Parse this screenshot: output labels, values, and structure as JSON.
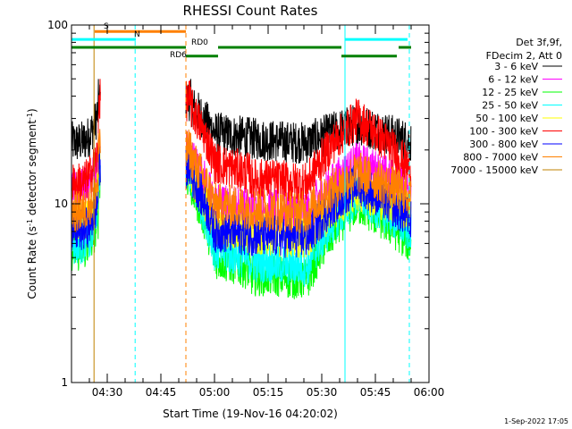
{
  "chart_data": {
    "type": "line",
    "title": "RHESSI Count Rates",
    "xlabel": "Start Time (19-Nov-16 04:20:02)",
    "ylabel": "Count Rate (s",
    "ylabel_sup": "-1",
    "ylabel_tail": " detector segment",
    "ylabel_end": ")",
    "y_scale": "log",
    "ylim": [
      1,
      100
    ],
    "xlim_minutes_from_0420": [
      0,
      100
    ],
    "yticks": [
      {
        "value": 1,
        "label": "1"
      },
      {
        "value": 10,
        "label": "10"
      },
      {
        "value": 100,
        "label": "100"
      }
    ],
    "xticks": [
      {
        "min": 10,
        "label": "04:30"
      },
      {
        "min": 25,
        "label": "04:45"
      },
      {
        "min": 40,
        "label": "05:00"
      },
      {
        "min": 55,
        "label": "05:15"
      },
      {
        "min": 70,
        "label": "05:30"
      },
      {
        "min": 85,
        "label": "05:45"
      },
      {
        "min": 100,
        "label": "06:00"
      }
    ],
    "legend_header": [
      "Det 3f,9f,",
      "FDecim 2, Att 0"
    ],
    "legend_position": "right",
    "series": [
      {
        "name": "3 - 6 keV",
        "color": "#000000",
        "levels": [
          22,
          38,
          25,
          22,
          28,
          22
        ]
      },
      {
        "name": "6 - 12 keV",
        "color": "#ff00ff",
        "levels": [
          12,
          20,
          10,
          9,
          17,
          12
        ]
      },
      {
        "name": "12 - 25 keV",
        "color": "#00ff00",
        "levels": [
          5.5,
          14,
          5,
          3.8,
          10,
          6
        ]
      },
      {
        "name": "25 - 50 keV",
        "color": "#00ffff",
        "levels": [
          6,
          15,
          5.5,
          4.5,
          11,
          7
        ]
      },
      {
        "name": "50 - 100 keV",
        "color": "#ffff00",
        "levels": [
          8,
          16,
          7.5,
          6.5,
          12,
          9
        ]
      },
      {
        "name": "100 - 300 keV",
        "color": "#ff0000",
        "levels": [
          13,
          38,
          17,
          13,
          30,
          15
        ]
      },
      {
        "name": "300 - 800 keV",
        "color": "#0000ff",
        "levels": [
          7,
          16,
          7,
          6.5,
          13,
          8
        ]
      },
      {
        "name": "800 - 7000 keV",
        "color": "#ff8000",
        "levels": [
          9,
          20,
          10,
          9,
          15,
          11
        ]
      },
      {
        "name": "7000 - 15000 keV",
        "color": "#c08000",
        "levels": [
          null,
          null,
          null,
          null,
          null,
          null
        ]
      }
    ],
    "segment_breaks_minutes": [
      0,
      7.5,
      21.7,
      33.5,
      55,
      76.5,
      95
    ],
    "attenuator_bars": [
      {
        "label": "S",
        "color": "#ff8000",
        "x0": 6.5,
        "x1": 32,
        "value": 92
      },
      {
        "label": "N",
        "color": "#00ffff",
        "x0": 0,
        "x1": 18,
        "value": 83
      },
      {
        "label": "N",
        "color": "#00ffff",
        "x0": 76.5,
        "x1": 94,
        "value": 83
      },
      {
        "label": "RD0",
        "color": "#008000",
        "x0": 0,
        "x1": 32,
        "value": 75
      },
      {
        "label": "RD0",
        "color": "#008000",
        "x0": 41,
        "x1": 75.5,
        "value": 75
      },
      {
        "label": "RD0",
        "color": "#008000",
        "x0": 91.5,
        "x1": 95,
        "value": 75
      },
      {
        "label": "RD6",
        "color": "#008000",
        "x0": 32,
        "x1": 41,
        "value": 67
      },
      {
        "label": "RD6",
        "color": "#008000",
        "x0": 75.5,
        "x1": 91,
        "value": 67
      }
    ],
    "vlines": [
      {
        "min": 0,
        "color": "#00ffff",
        "style": "solid"
      },
      {
        "min": 6.3,
        "color": "#c08000",
        "style": "solid"
      },
      {
        "min": 17.8,
        "color": "#00ffff",
        "style": "dashed"
      },
      {
        "min": 32,
        "color": "#ff8000",
        "style": "dashed"
      },
      {
        "min": 76.5,
        "color": "#00ffff",
        "style": "solid"
      },
      {
        "min": 94.5,
        "color": "#00ffff",
        "style": "dashed"
      }
    ],
    "timestamp": "1-Sep-2022 17:05"
  }
}
